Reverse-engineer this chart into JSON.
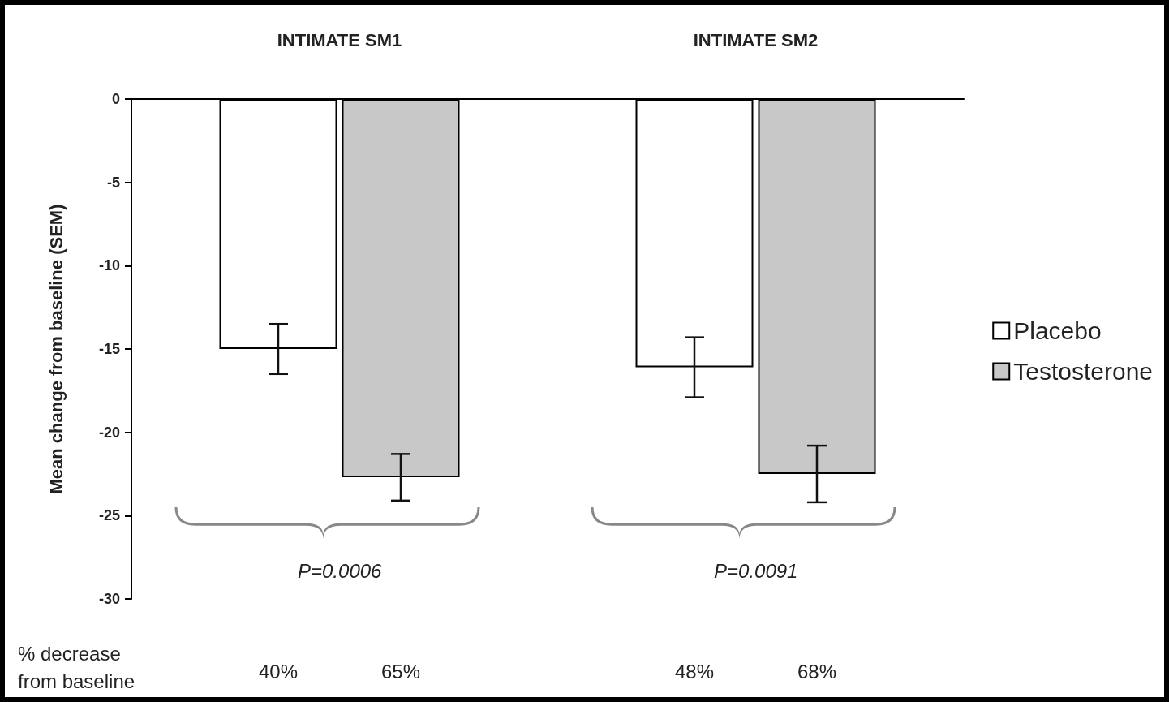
{
  "chart_data": {
    "type": "bar",
    "categories": [
      "INTIMATE SM1",
      "INTIMATE SM2"
    ],
    "ylabel": "Mean change from baseline (SEM)",
    "ylim": [
      -30,
      0
    ],
    "yticks": [
      0,
      -5,
      -10,
      -15,
      -20,
      -25,
      -30
    ],
    "series": [
      {
        "name": "Placebo",
        "color": "#ffffff",
        "values": [
          -15,
          -16.1
        ],
        "errors": [
          1.5,
          1.8
        ]
      },
      {
        "name": "Testosterone",
        "color": "#c8c8c8",
        "values": [
          -22.7,
          -22.5
        ],
        "errors": [
          1.4,
          1.7
        ]
      }
    ],
    "legend": "right",
    "grid": false,
    "annotations": [
      "P=0.0006",
      "P=0.0091",
      "% decrease\nfrom baseline",
      "40%",
      "65%",
      "48%",
      "68%"
    ]
  }
}
